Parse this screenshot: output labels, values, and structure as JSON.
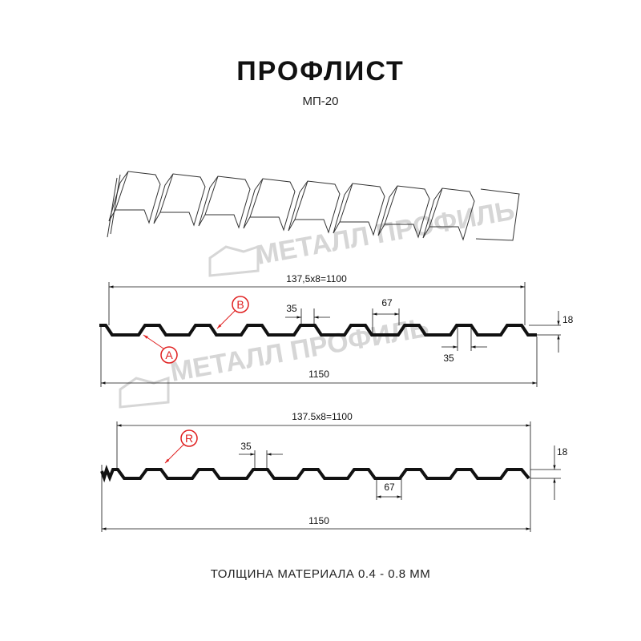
{
  "title": "ПРОФЛИСТ",
  "model": "МП-20",
  "watermark": "МЕТАЛЛ ПРОФИЛЬ",
  "profile_top": {
    "pitch_label": "137,5x8=1100",
    "total_label": "1150",
    "ridge_label": "35",
    "ridge_label_2": "35",
    "valley_label": "67",
    "height_label": "18",
    "marker_a": "A",
    "marker_b": "B"
  },
  "profile_bottom": {
    "pitch_label": "137.5x8=1100",
    "total_label": "1150",
    "ridge_label": "35",
    "valley_label": "67",
    "height_label": "18",
    "marker_r": "R"
  },
  "footer": "ТОЛЩИНА МАТЕРИАЛА 0.4 - 0.8 ММ",
  "colors": {
    "profile": "#111111",
    "marker": "#e02020",
    "watermark": "#d6d6d6"
  }
}
